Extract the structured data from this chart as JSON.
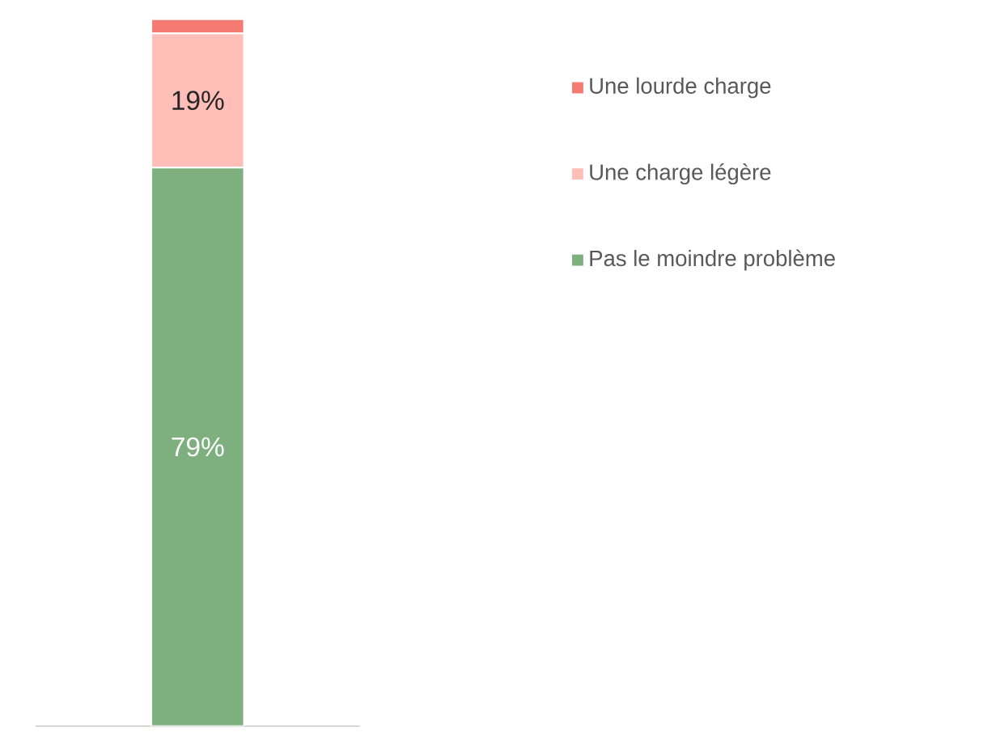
{
  "chart_data": {
    "type": "bar",
    "stacked": true,
    "categories": [
      null
    ],
    "series": [
      {
        "name": "Pas le moindre problème",
        "color": "#7daf7f",
        "values": [
          79
        ],
        "value_labels": [
          "79%"
        ]
      },
      {
        "name": "Une charge légère",
        "color": "#ffbfb8",
        "values": [
          19
        ],
        "value_labels": [
          "19%"
        ]
      },
      {
        "name": "Une lourde charge",
        "color": "#f47a72",
        "values": [
          2
        ],
        "value_labels": [
          null
        ]
      }
    ],
    "legend": "right"
  }
}
